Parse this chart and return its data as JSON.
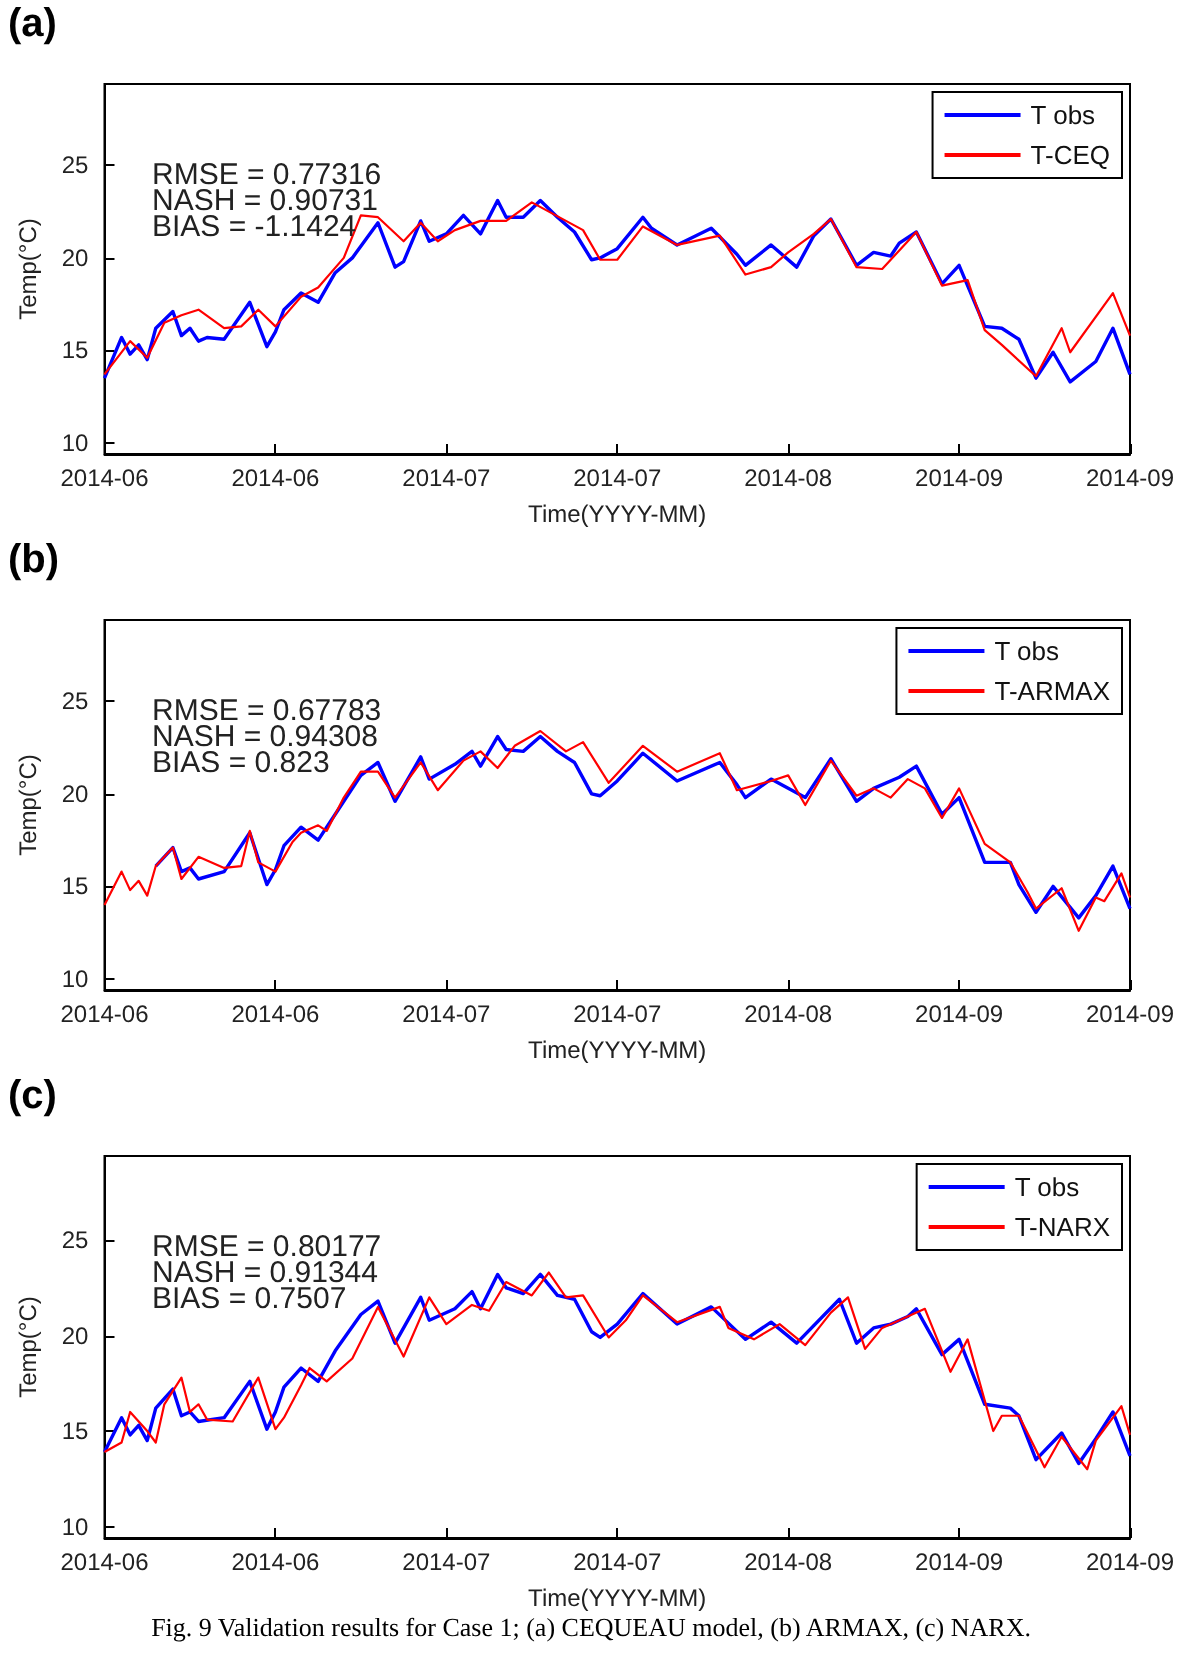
{
  "chart_data": [
    {
      "type": "line",
      "title": "(a)",
      "xlabel": "Time(YYYY-MM)",
      "ylabel": "Temp(°C)",
      "xlim": [
        "2014-06-01",
        "2014-09-29"
      ],
      "xticks": [
        {
          "value": "2014-06-01",
          "label": "2014-06"
        },
        {
          "value": "2014-06-21",
          "label": "2014-06"
        },
        {
          "value": "2014-07-11",
          "label": "2014-07"
        },
        {
          "value": "2014-07-31",
          "label": "2014-07"
        },
        {
          "value": "2014-08-20",
          "label": "2014-08"
        },
        {
          "value": "2014-09-09",
          "label": "2014-09"
        },
        {
          "value": "2014-09-29",
          "label": "2014-09"
        }
      ],
      "ylim": [
        9.4,
        29.4
      ],
      "yticks": [
        10,
        15,
        20,
        25
      ],
      "grid": false,
      "legend": "top right",
      "annotations": [
        "RMSE = 0.77316\nNASH = 0.90731\nBIAS = -1.1424"
      ],
      "series": [
        {
          "name": "T obs",
          "color": "#0000ff",
          "x": [
            "2014-06-01",
            "2014-06-03",
            "2014-06-04",
            "2014-06-05",
            "2014-06-06",
            "2014-06-07",
            "2014-06-09",
            "2014-06-10",
            "2014-06-11",
            "2014-06-12",
            "2014-06-13",
            "2014-06-15",
            "2014-06-18",
            "2014-06-20",
            "2014-06-21",
            "2014-06-22",
            "2014-06-24",
            "2014-06-26",
            "2014-06-28",
            "2014-06-30",
            "2014-07-03",
            "2014-07-05",
            "2014-07-06",
            "2014-07-08",
            "2014-07-09",
            "2014-07-11",
            "2014-07-13",
            "2014-07-15",
            "2014-07-17",
            "2014-07-18",
            "2014-07-20",
            "2014-07-22",
            "2014-07-24",
            "2014-07-26",
            "2014-07-28",
            "2014-07-29",
            "2014-07-31",
            "2014-08-03",
            "2014-08-04",
            "2014-08-07",
            "2014-08-11",
            "2014-08-14",
            "2014-08-15",
            "2014-08-18",
            "2014-08-21",
            "2014-08-23",
            "2014-08-25",
            "2014-08-28",
            "2014-08-30",
            "2014-09-01",
            "2014-09-02",
            "2014-09-04",
            "2014-09-07",
            "2014-09-09",
            "2014-09-12",
            "2014-09-14",
            "2014-09-16",
            "2014-09-18",
            "2014-09-20",
            "2014-09-22",
            "2014-09-25",
            "2014-09-27",
            "2014-09-29"
          ],
          "values": [
            13.5,
            15.7,
            14.8,
            15.3,
            14.5,
            16.2,
            17.1,
            15.8,
            16.2,
            15.5,
            15.7,
            15.6,
            17.6,
            15.2,
            16.0,
            17.2,
            18.1,
            17.6,
            19.2,
            20.0,
            21.9,
            19.5,
            19.8,
            22.0,
            20.9,
            21.3,
            22.3,
            21.3,
            23.1,
            22.2,
            22.2,
            23.1,
            22.2,
            21.4,
            19.9,
            20.0,
            20.5,
            22.2,
            21.6,
            20.7,
            21.6,
            20.2,
            19.6,
            20.7,
            19.5,
            21.2,
            22.1,
            19.6,
            20.3,
            20.1,
            20.8,
            21.4,
            18.6,
            19.6,
            16.3,
            16.2,
            15.6,
            13.5,
            14.9,
            13.3,
            14.4,
            16.2,
            13.7
          ]
        },
        {
          "name": "T-CEQ",
          "color": "#ff0000",
          "x": [
            "2014-06-01",
            "2014-06-04",
            "2014-06-06",
            "2014-06-08",
            "2014-06-10",
            "2014-06-12",
            "2014-06-15",
            "2014-06-17",
            "2014-06-19",
            "2014-06-21",
            "2014-06-24",
            "2014-06-26",
            "2014-06-29",
            "2014-07-01",
            "2014-07-03",
            "2014-07-06",
            "2014-07-08",
            "2014-07-10",
            "2014-07-12",
            "2014-07-15",
            "2014-07-18",
            "2014-07-21",
            "2014-07-25",
            "2014-07-27",
            "2014-07-29",
            "2014-07-31",
            "2014-08-03",
            "2014-08-07",
            "2014-08-12",
            "2014-08-15",
            "2014-08-18",
            "2014-08-20",
            "2014-08-23",
            "2014-08-25",
            "2014-08-28",
            "2014-08-31",
            "2014-09-04",
            "2014-09-07",
            "2014-09-10",
            "2014-09-12",
            "2014-09-14",
            "2014-09-18",
            "2014-09-21",
            "2014-09-22",
            "2014-09-27",
            "2014-09-29"
          ],
          "values": [
            13.7,
            15.5,
            14.6,
            16.5,
            16.9,
            17.2,
            16.2,
            16.3,
            17.2,
            16.3,
            17.9,
            18.4,
            20.0,
            22.3,
            22.2,
            20.9,
            21.9,
            20.9,
            21.5,
            22.0,
            22.0,
            23.0,
            22.0,
            21.5,
            19.9,
            19.9,
            21.7,
            20.7,
            21.2,
            19.1,
            19.5,
            20.3,
            21.3,
            22.1,
            19.5,
            19.4,
            21.4,
            18.5,
            18.8,
            16.1,
            15.3,
            13.6,
            16.2,
            14.9,
            18.1,
            15.8
          ]
        }
      ]
    },
    {
      "type": "line",
      "title": "(b)",
      "xlabel": "Time(YYYY-MM)",
      "ylabel": "Temp(°C)",
      "xlim": [
        "2014-06-01",
        "2014-09-29"
      ],
      "xticks": [
        {
          "value": "2014-06-01",
          "label": "2014-06"
        },
        {
          "value": "2014-06-21",
          "label": "2014-06"
        },
        {
          "value": "2014-07-11",
          "label": "2014-07"
        },
        {
          "value": "2014-07-31",
          "label": "2014-07"
        },
        {
          "value": "2014-08-20",
          "label": "2014-08"
        },
        {
          "value": "2014-09-09",
          "label": "2014-09"
        },
        {
          "value": "2014-09-29",
          "label": "2014-09"
        }
      ],
      "ylim": [
        9.4,
        29.4
      ],
      "yticks": [
        10,
        15,
        20,
        25
      ],
      "grid": false,
      "legend": "top right",
      "annotations": [
        "RMSE = 0.67783\nNASH = 0.94308\nBIAS = 0.823"
      ],
      "series": [
        {
          "name": "T obs",
          "color": "#0000ff",
          "x": [
            "2014-06-07",
            "2014-06-09",
            "2014-06-10",
            "2014-06-11",
            "2014-06-12",
            "2014-06-15",
            "2014-06-18",
            "2014-06-20",
            "2014-06-21",
            "2014-06-22",
            "2014-06-24",
            "2014-06-26",
            "2014-06-28",
            "2014-07-01",
            "2014-07-03",
            "2014-07-05",
            "2014-07-08",
            "2014-07-09",
            "2014-07-12",
            "2014-07-14",
            "2014-07-15",
            "2014-07-17",
            "2014-07-18",
            "2014-07-20",
            "2014-07-22",
            "2014-07-24",
            "2014-07-26",
            "2014-07-28",
            "2014-07-29",
            "2014-07-31",
            "2014-08-03",
            "2014-08-07",
            "2014-08-12",
            "2014-08-14",
            "2014-08-15",
            "2014-08-18",
            "2014-08-22",
            "2014-08-25",
            "2014-08-28",
            "2014-08-30",
            "2014-09-02",
            "2014-09-04",
            "2014-09-07",
            "2014-09-09",
            "2014-09-12",
            "2014-09-15",
            "2014-09-16",
            "2014-09-18",
            "2014-09-20",
            "2014-09-23",
            "2014-09-25",
            "2014-09-27",
            "2014-09-29"
          ],
          "values": [
            16.1,
            17.1,
            15.8,
            16.0,
            15.4,
            15.8,
            17.9,
            15.1,
            15.9,
            17.2,
            18.2,
            17.5,
            18.9,
            21.0,
            21.7,
            19.6,
            22.0,
            20.8,
            21.6,
            22.3,
            21.5,
            23.1,
            22.4,
            22.3,
            23.1,
            22.3,
            21.7,
            20.0,
            19.9,
            20.7,
            22.2,
            20.7,
            21.7,
            20.5,
            19.8,
            20.8,
            19.8,
            21.9,
            19.6,
            20.3,
            20.9,
            21.5,
            18.9,
            19.8,
            16.3,
            16.3,
            15.1,
            13.6,
            15.0,
            13.3,
            14.5,
            16.1,
            13.8
          ]
        },
        {
          "name": "T-ARMAX",
          "color": "#ff0000",
          "x": [
            "2014-06-01",
            "2014-06-03",
            "2014-06-04",
            "2014-06-05",
            "2014-06-06",
            "2014-06-07",
            "2014-06-09",
            "2014-06-10",
            "2014-06-12",
            "2014-06-15",
            "2014-06-17",
            "2014-06-18",
            "2014-06-19",
            "2014-06-21",
            "2014-06-23",
            "2014-06-24",
            "2014-06-26",
            "2014-06-27",
            "2014-06-29",
            "2014-07-01",
            "2014-07-03",
            "2014-07-05",
            "2014-07-08",
            "2014-07-10",
            "2014-07-13",
            "2014-07-15",
            "2014-07-17",
            "2014-07-19",
            "2014-07-22",
            "2014-07-25",
            "2014-07-27",
            "2014-07-30",
            "2014-08-03",
            "2014-08-07",
            "2014-08-12",
            "2014-08-14",
            "2014-08-18",
            "2014-08-20",
            "2014-08-22",
            "2014-08-25",
            "2014-08-28",
            "2014-08-30",
            "2014-09-01",
            "2014-09-03",
            "2014-09-05",
            "2014-09-07",
            "2014-09-09",
            "2014-09-12",
            "2014-09-15",
            "2014-09-17",
            "2014-09-18",
            "2014-09-21",
            "2014-09-23",
            "2014-09-25",
            "2014-09-26",
            "2014-09-28",
            "2014-09-29"
          ],
          "values": [
            14.0,
            15.8,
            14.8,
            15.3,
            14.5,
            16.1,
            17.1,
            15.4,
            16.6,
            16.0,
            16.1,
            18.0,
            16.3,
            15.8,
            17.4,
            17.9,
            18.3,
            18.0,
            19.8,
            21.2,
            21.2,
            19.8,
            21.7,
            20.2,
            21.8,
            22.3,
            21.4,
            22.6,
            23.4,
            22.3,
            22.8,
            20.6,
            22.6,
            21.2,
            22.2,
            20.2,
            20.7,
            21.0,
            19.4,
            21.8,
            19.9,
            20.3,
            19.8,
            20.8,
            20.3,
            18.7,
            20.3,
            17.3,
            16.3,
            14.7,
            13.8,
            14.9,
            12.6,
            14.4,
            14.2,
            15.7,
            14.4
          ]
        }
      ]
    },
    {
      "type": "line",
      "title": "(c)",
      "xlabel": "Time(YYYY-MM)",
      "ylabel": "Temp(°C)",
      "xlim": [
        "2014-06-01",
        "2014-09-29"
      ],
      "xticks": [
        {
          "value": "2014-06-01",
          "label": "2014-06"
        },
        {
          "value": "2014-06-21",
          "label": "2014-06"
        },
        {
          "value": "2014-07-11",
          "label": "2014-07"
        },
        {
          "value": "2014-07-31",
          "label": "2014-07"
        },
        {
          "value": "2014-08-20",
          "label": "2014-08"
        },
        {
          "value": "2014-09-09",
          "label": "2014-09"
        },
        {
          "value": "2014-09-29",
          "label": "2014-09"
        }
      ],
      "ylim": [
        9.4,
        29.4
      ],
      "yticks": [
        10,
        15,
        20,
        25
      ],
      "grid": false,
      "legend": "top right",
      "annotations": [
        "RMSE = 0.80177\nNASH = 0.91344\nBIAS = 0.7507",
        "Fig. 9 Validation results for Case 1; (a) CEQUEAU model, (b) ARMAX, (c) NARX."
      ],
      "series": [
        {
          "name": "T obs",
          "color": "#0000ff",
          "x": [
            "2014-06-01",
            "2014-06-03",
            "2014-06-04",
            "2014-06-05",
            "2014-06-06",
            "2014-06-07",
            "2014-06-09",
            "2014-06-10",
            "2014-06-11",
            "2014-06-12",
            "2014-06-15",
            "2014-06-18",
            "2014-06-20",
            "2014-06-21",
            "2014-06-22",
            "2014-06-24",
            "2014-06-26",
            "2014-06-28",
            "2014-07-01",
            "2014-07-03",
            "2014-07-05",
            "2014-07-08",
            "2014-07-09",
            "2014-07-12",
            "2014-07-14",
            "2014-07-15",
            "2014-07-17",
            "2014-07-18",
            "2014-07-20",
            "2014-07-22",
            "2014-07-24",
            "2014-07-26",
            "2014-07-28",
            "2014-07-29",
            "2014-07-31",
            "2014-08-03",
            "2014-08-07",
            "2014-08-11",
            "2014-08-15",
            "2014-08-18",
            "2014-08-21",
            "2014-08-26",
            "2014-08-28",
            "2014-08-30",
            "2014-09-01",
            "2014-09-03",
            "2014-09-04",
            "2014-09-07",
            "2014-09-09",
            "2014-09-12",
            "2014-09-15",
            "2014-09-16",
            "2014-09-18",
            "2014-09-21",
            "2014-09-23",
            "2014-09-25",
            "2014-09-27",
            "2014-09-29"
          ],
          "values": [
            13.9,
            15.7,
            14.8,
            15.3,
            14.5,
            16.2,
            17.2,
            15.8,
            16.0,
            15.5,
            15.7,
            17.6,
            15.1,
            16.0,
            17.3,
            18.3,
            17.6,
            19.2,
            21.1,
            21.8,
            19.6,
            22.0,
            20.8,
            21.4,
            22.3,
            21.4,
            23.2,
            22.5,
            22.2,
            23.2,
            22.1,
            21.9,
            20.2,
            19.9,
            20.6,
            22.2,
            20.6,
            21.5,
            19.8,
            20.7,
            19.6,
            21.9,
            19.6,
            20.4,
            20.6,
            21.0,
            21.4,
            19.0,
            19.8,
            16.4,
            16.2,
            15.8,
            13.5,
            14.9,
            13.3,
            14.6,
            16.0,
            13.7
          ]
        },
        {
          "name": "T-NARX",
          "color": "#ff0000",
          "x": [
            "2014-06-01",
            "2014-06-03",
            "2014-06-04",
            "2014-06-06",
            "2014-06-07",
            "2014-06-08",
            "2014-06-10",
            "2014-06-11",
            "2014-06-12",
            "2014-06-13",
            "2014-06-16",
            "2014-06-19",
            "2014-06-21",
            "2014-06-22",
            "2014-06-24",
            "2014-06-25",
            "2014-06-27",
            "2014-06-30",
            "2014-07-03",
            "2014-07-06",
            "2014-07-09",
            "2014-07-11",
            "2014-07-14",
            "2014-07-16",
            "2014-07-18",
            "2014-07-21",
            "2014-07-23",
            "2014-07-25",
            "2014-07-27",
            "2014-07-30",
            "2014-08-01",
            "2014-08-03",
            "2014-08-07",
            "2014-08-12",
            "2014-08-13",
            "2014-08-16",
            "2014-08-19",
            "2014-08-22",
            "2014-08-25",
            "2014-08-27",
            "2014-08-29",
            "2014-08-31",
            "2014-09-05",
            "2014-09-08",
            "2014-09-10",
            "2014-09-13",
            "2014-09-14",
            "2014-09-16",
            "2014-09-19",
            "2014-09-21",
            "2014-09-24",
            "2014-09-25",
            "2014-09-28",
            "2014-09-29"
          ],
          "values": [
            13.9,
            14.4,
            16.0,
            15.0,
            14.4,
            16.4,
            17.8,
            16.0,
            16.4,
            15.6,
            15.5,
            17.8,
            15.1,
            15.7,
            17.4,
            18.3,
            17.6,
            18.8,
            21.5,
            18.9,
            22.0,
            20.6,
            21.6,
            21.3,
            22.8,
            22.1,
            23.3,
            22.0,
            22.1,
            19.9,
            20.8,
            22.1,
            20.7,
            21.5,
            20.4,
            19.8,
            20.6,
            19.5,
            21.2,
            22.0,
            19.3,
            20.4,
            21.4,
            18.1,
            19.8,
            15.0,
            15.8,
            15.8,
            13.1,
            14.7,
            13.0,
            14.5,
            16.3,
            14.8
          ]
        }
      ]
    }
  ]
}
